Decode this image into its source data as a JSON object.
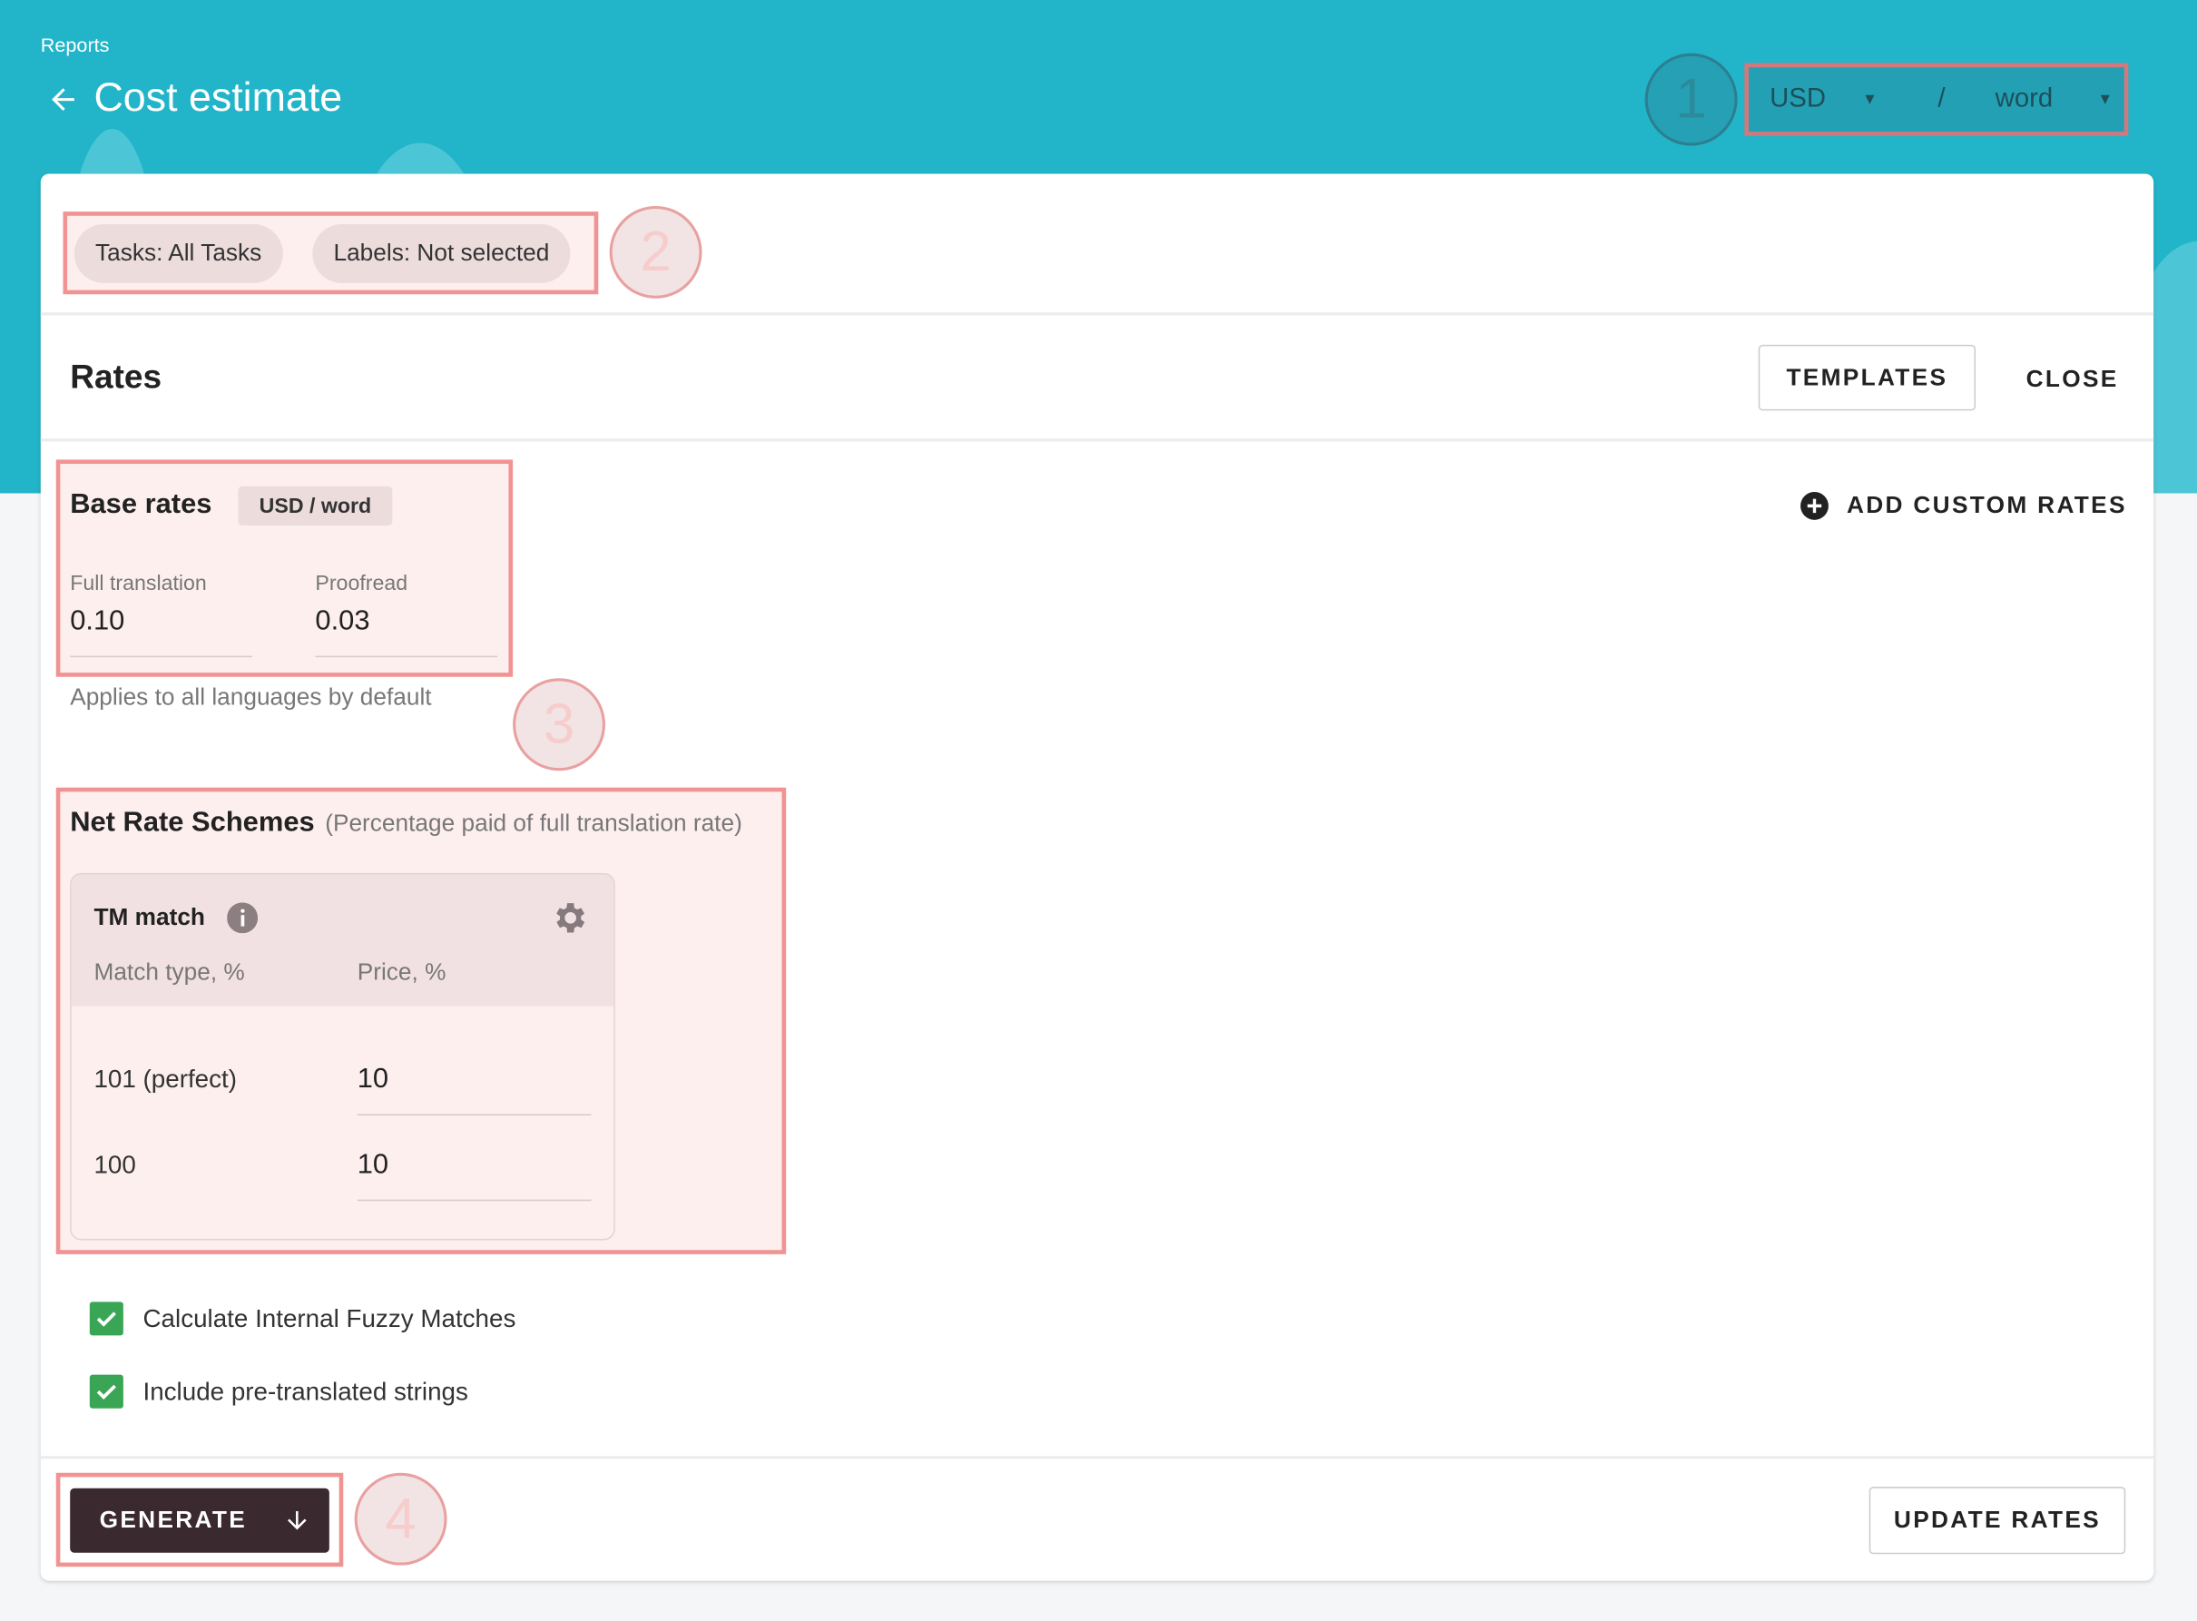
{
  "header": {
    "breadcrumb": "Reports",
    "title": "Cost estimate",
    "currency": "USD",
    "separator": "/",
    "unit": "word",
    "brand_color": "#22b5c9"
  },
  "filters": {
    "tasks": "Tasks: All Tasks",
    "labels": "Labels: Not selected"
  },
  "rates": {
    "title": "Rates",
    "templates_label": "TEMPLATES",
    "close_label": "CLOSE",
    "add_custom_label": "ADD CUSTOM RATES"
  },
  "base_rates": {
    "title": "Base rates",
    "unit_badge": "USD / word",
    "full_translation_label": "Full translation",
    "full_translation_value": "0.10",
    "proofread_label": "Proofread",
    "proofread_value": "0.03",
    "hint": "Applies to all languages by default"
  },
  "net_rate": {
    "title": "Net Rate Schemes",
    "subtitle": "(Percentage paid of full translation rate)",
    "card_title": "TM match",
    "col_match": "Match type, %",
    "col_price": "Price, %",
    "rows": [
      {
        "match": "101 (perfect)",
        "price": "10"
      },
      {
        "match": "100",
        "price": "10"
      }
    ]
  },
  "options": [
    {
      "label": "Calculate Internal Fuzzy Matches",
      "checked": true
    },
    {
      "label": "Include pre-translated strings",
      "checked": true
    }
  ],
  "footer": {
    "generate_label": "GENERATE",
    "update_label": "UPDATE RATES"
  },
  "annotations": [
    "1",
    "2",
    "3",
    "4"
  ]
}
